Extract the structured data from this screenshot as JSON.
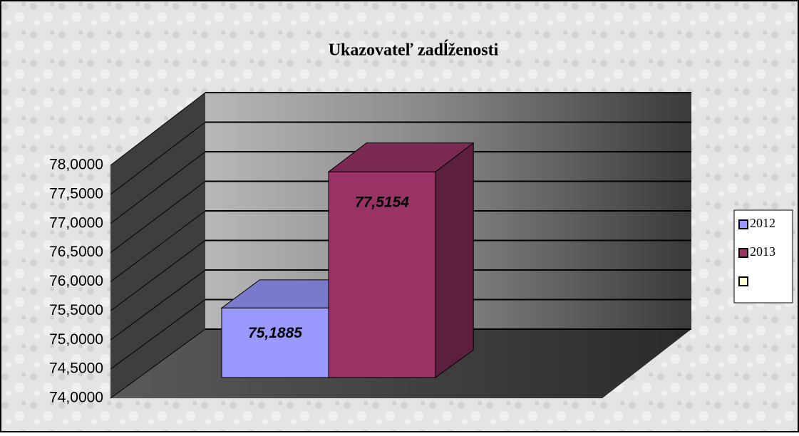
{
  "chart_data": {
    "type": "bar3d",
    "title": "Ukazovateľ zadĺženosti",
    "series": [
      {
        "name": "2012",
        "color": "#9999ff",
        "values": [
          75.1885
        ],
        "value_labels": [
          "75,1885"
        ]
      },
      {
        "name": "2013",
        "color": "#993366",
        "values": [
          77.5154
        ],
        "value_labels": [
          "77,5154"
        ]
      }
    ],
    "ylim": [
      74,
      78
    ],
    "yticks": [
      {
        "value": 74,
        "label": "74,0000"
      },
      {
        "value": 74.5,
        "label": "74,5000"
      },
      {
        "value": 75,
        "label": "75,0000"
      },
      {
        "value": 75.5,
        "label": "75,5000"
      },
      {
        "value": 76,
        "label": "76,0000"
      },
      {
        "value": 76.5,
        "label": "76,5000"
      },
      {
        "value": 77,
        "label": "77,0000"
      },
      {
        "value": 77.5,
        "label": "77,5000"
      },
      {
        "value": 78,
        "label": "78,0000"
      }
    ],
    "grid": true
  }
}
